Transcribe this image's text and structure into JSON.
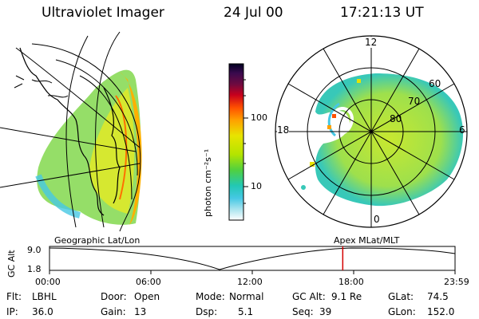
{
  "header": {
    "title": "Ultraviolet Imager",
    "date": "24 Jul 00",
    "time": "17:21:13 UT"
  },
  "colorbar": {
    "unit_label": "photon cm⁻²s⁻¹",
    "ticks": [
      "100",
      "10"
    ]
  },
  "polar_plot": {
    "mlt_labels": [
      "12",
      "18",
      "6",
      "0"
    ],
    "lat_labels": [
      "60",
      "70",
      "80"
    ]
  },
  "projection_labels": {
    "left": "Geographic Lat/Lon",
    "right": "Apex MLat/MLT"
  },
  "altitude_plot": {
    "axis_label": "GC Alt",
    "y_ticks": [
      "9.0",
      "1.8"
    ],
    "x_ticks": [
      "00:00",
      "06:00",
      "12:00",
      "18:00",
      "23:59"
    ],
    "marker_time_fraction": 0.7231
  },
  "status": {
    "filter": {
      "label": "Flt:",
      "value": "LBHL"
    },
    "ip": {
      "label": "IP:",
      "value": "36.0"
    },
    "door": {
      "label": "Door:",
      "value": "Open"
    },
    "gain": {
      "label": "Gain:",
      "value": "13"
    },
    "mode": {
      "label": "Mode:",
      "value": "Normal"
    },
    "dsp": {
      "label": "Dsp:",
      "value": "5.1"
    },
    "gc_alt": {
      "label": "GC Alt:",
      "value": "9.1 Re"
    },
    "seq": {
      "label": "Seq:",
      "value": "39"
    },
    "glat": {
      "label": "GLat:",
      "value": "74.5"
    },
    "glon": {
      "label": "GLon:",
      "value": "152.0"
    }
  },
  "colors": {
    "marker": "#d40000"
  }
}
